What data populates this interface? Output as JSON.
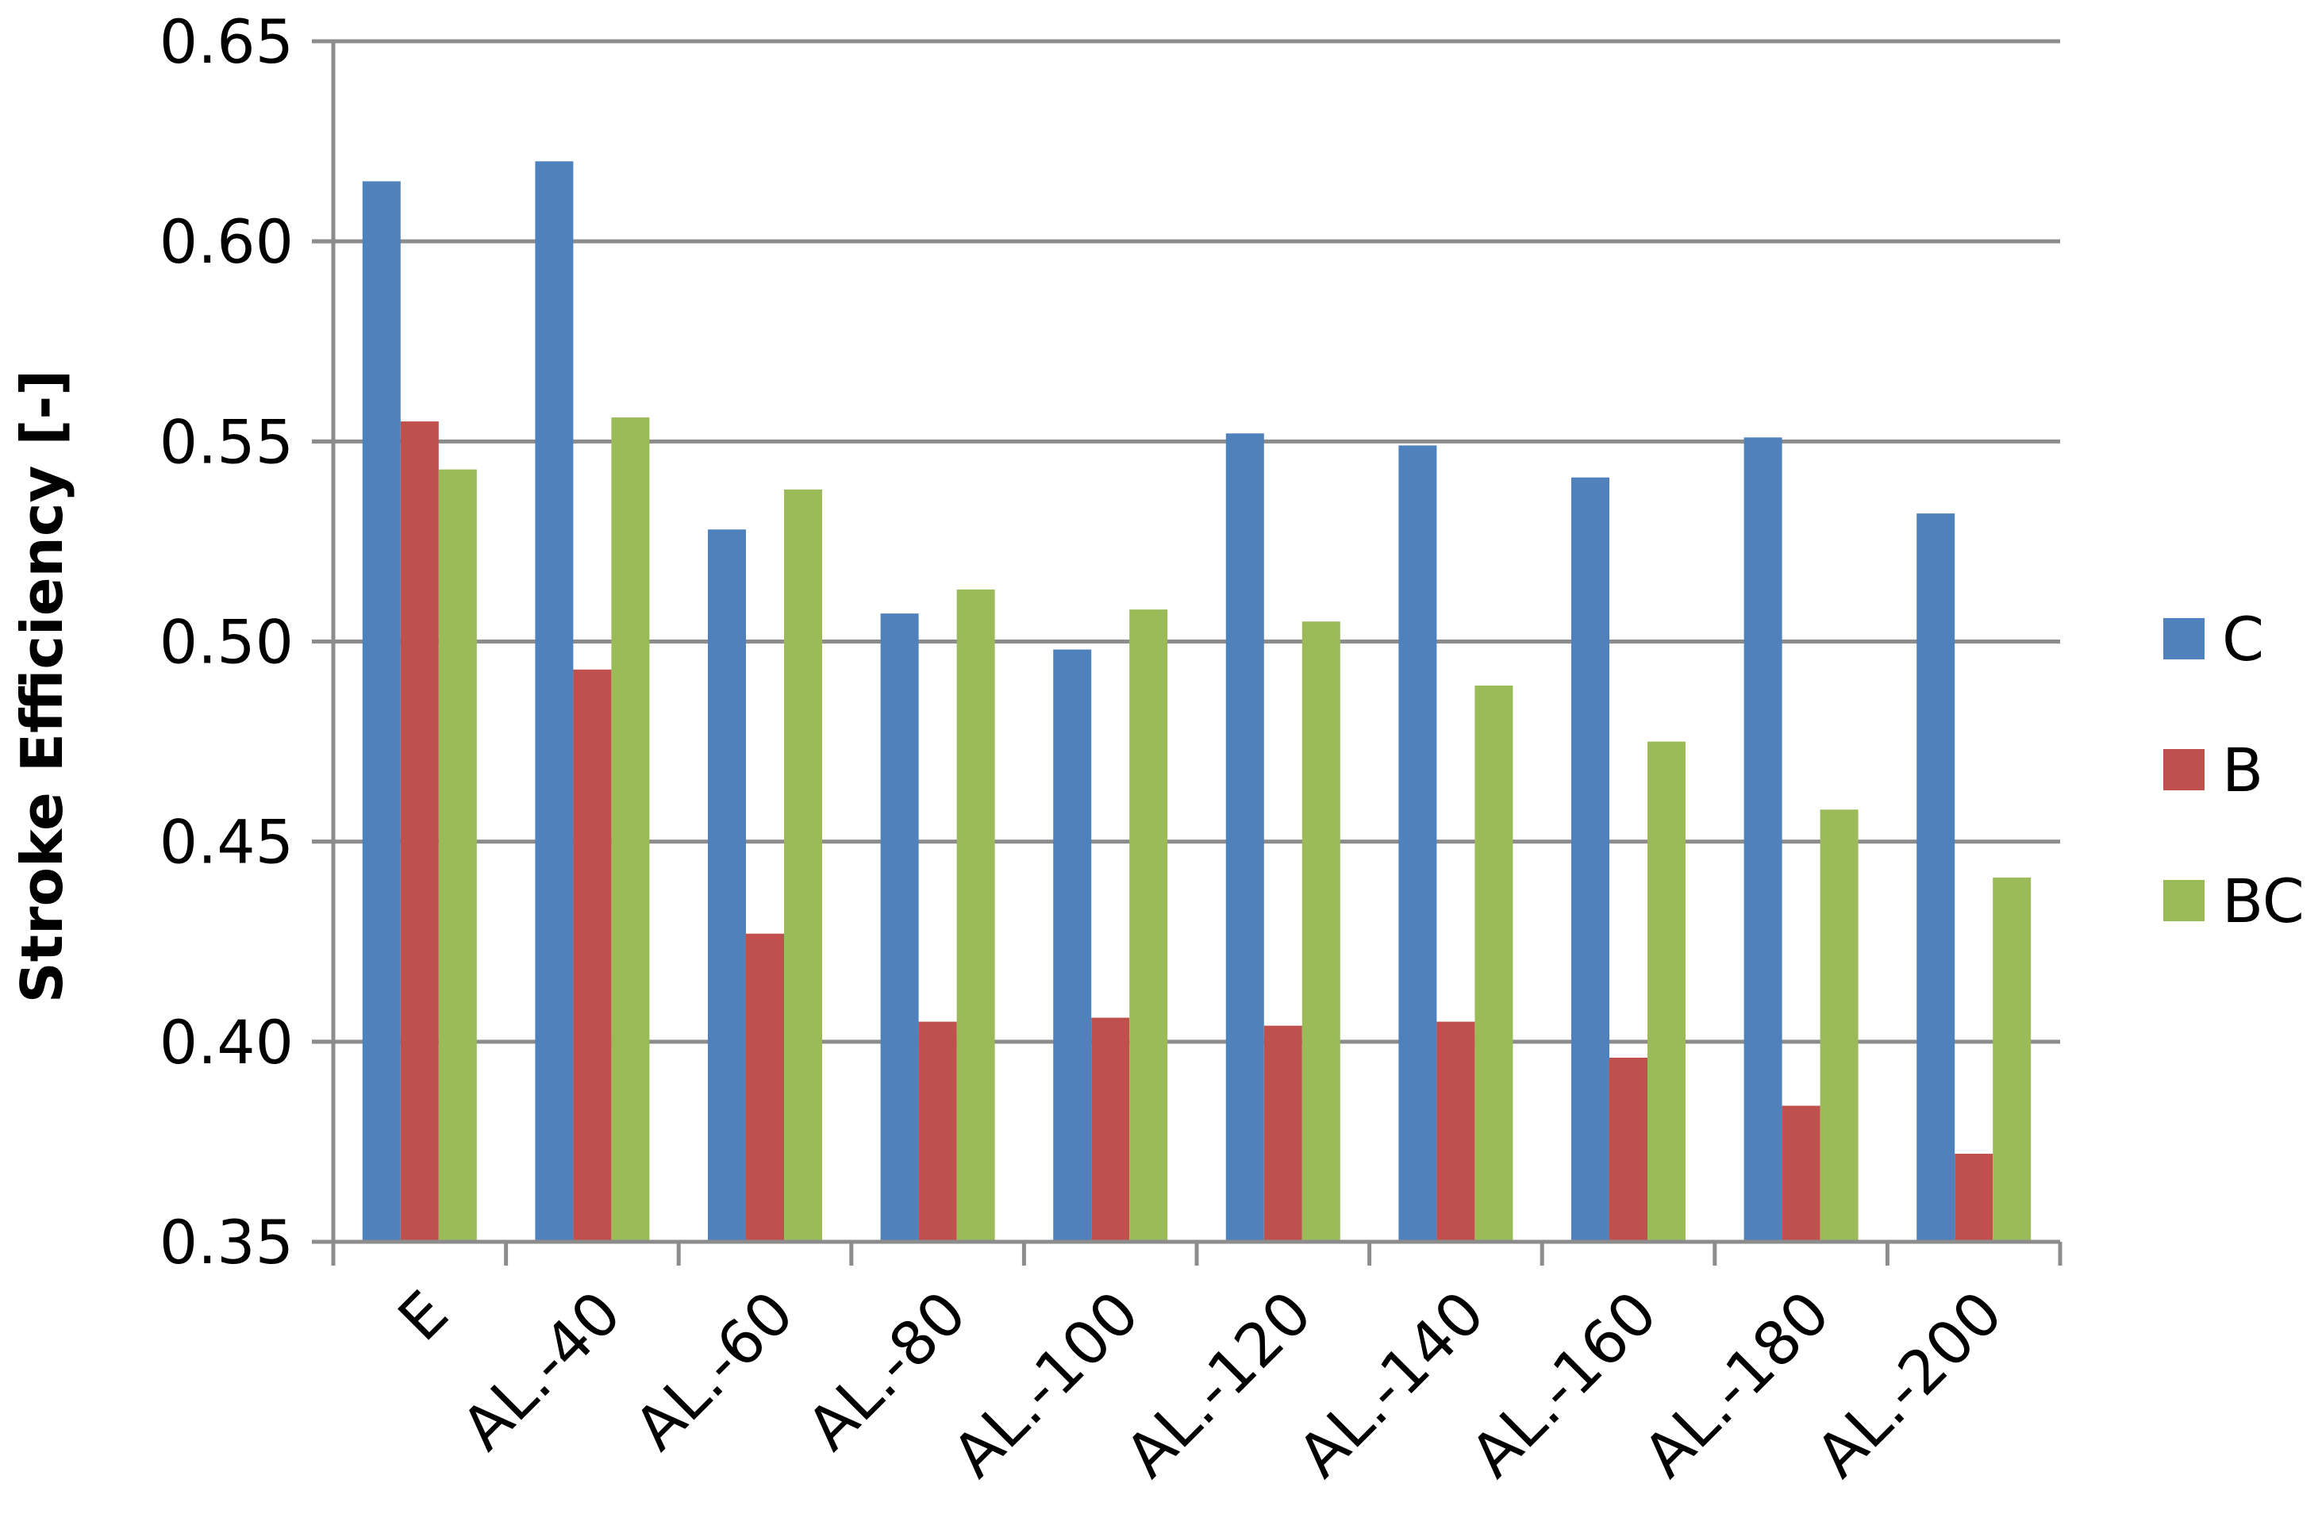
{
  "chart_data": {
    "type": "bar",
    "title": "",
    "xlabel": "",
    "ylabel": "Stroke Efficiency [-]",
    "ylim": [
      0.35,
      0.65
    ],
    "y_ticks": [
      "0.35",
      "0.40",
      "0.45",
      "0.50",
      "0.55",
      "0.60",
      "0.65"
    ],
    "y_tick_values": [
      0.35,
      0.4,
      0.45,
      0.5,
      0.55,
      0.6,
      0.65
    ],
    "grid": "horizontal",
    "legend_position": "right",
    "categories": [
      "E",
      "AL.-40",
      "AL.-60",
      "AL.-80",
      "AL.-100",
      "AL.-120",
      "AL.-140",
      "AL.-160",
      "AL.-180",
      "AL.-200"
    ],
    "series": [
      {
        "name": "C",
        "color": "#4F81BD",
        "values": [
          0.615,
          0.62,
          0.528,
          0.507,
          0.498,
          0.552,
          0.549,
          0.541,
          0.551,
          0.532
        ]
      },
      {
        "name": "B",
        "color": "#C0504D",
        "values": [
          0.555,
          0.493,
          0.427,
          0.405,
          0.406,
          0.404,
          0.405,
          0.396,
          0.384,
          0.372
        ]
      },
      {
        "name": "BC",
        "color": "#9BBB59",
        "values": [
          0.543,
          0.556,
          0.538,
          0.513,
          0.508,
          0.505,
          0.489,
          0.475,
          0.458,
          0.441
        ]
      }
    ]
  }
}
